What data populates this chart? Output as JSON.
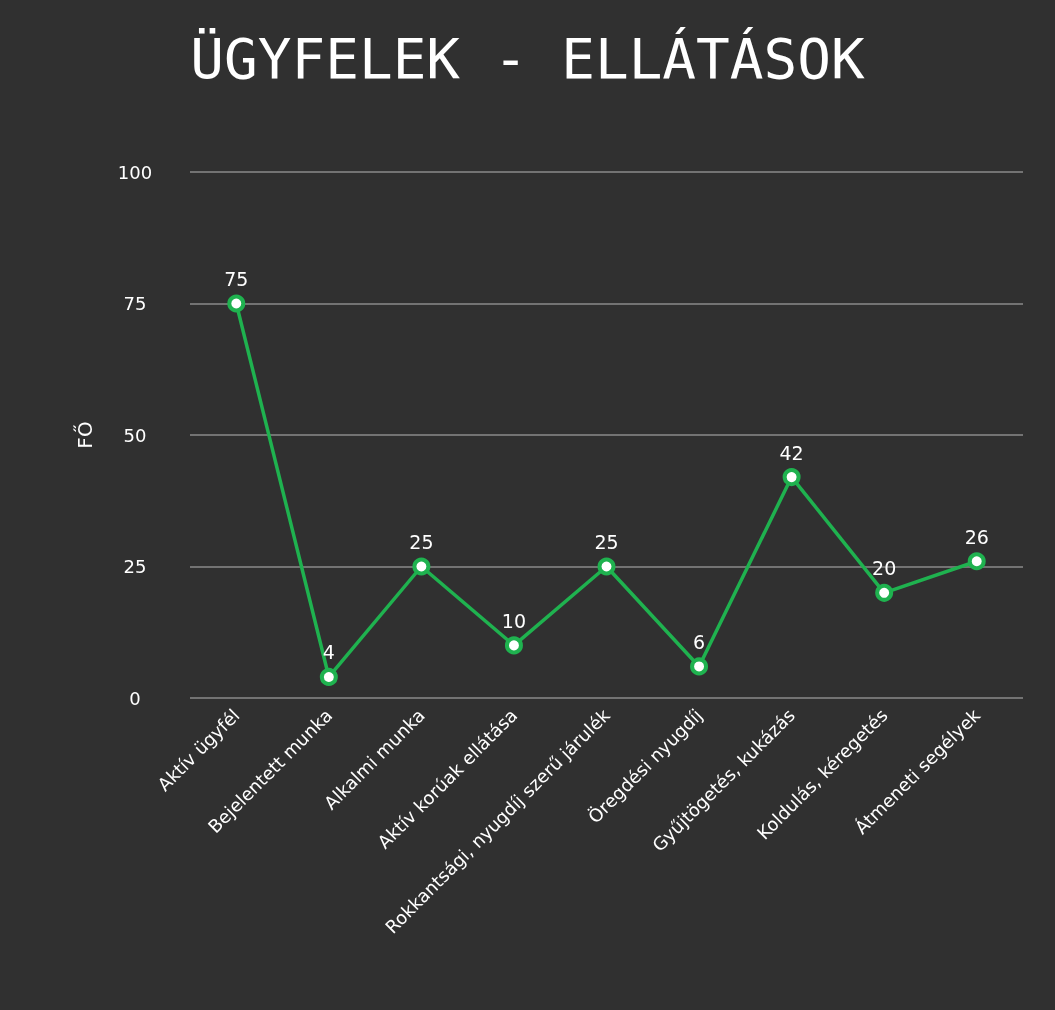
{
  "chart_data": {
    "type": "line",
    "title": "ÜGYFELEK - ELLÁTÁSOK",
    "ylabel": "FŐ",
    "categories": [
      "Aktív ügyfél",
      "Bejelentett munka",
      "Alkalmi munka",
      "Aktív korúak ellátása",
      "Rokkantsági, nyugdíj szerű járulék",
      "Öregdési nyugdíj",
      "Gyűjtögetés, kukázás",
      "Koldulás, kéregetés",
      "Átmeneti segélyek"
    ],
    "series": [
      {
        "color": "#1fb24f",
        "values": [
          75,
          4,
          25,
          10,
          25,
          6,
          42,
          20,
          26
        ]
      }
    ],
    "ylim": [
      0,
      100
    ],
    "yticks": [
      0,
      25,
      50,
      75,
      100
    ],
    "grid": "y",
    "data_labels": true,
    "marker": "circle",
    "line_style": "solid"
  }
}
